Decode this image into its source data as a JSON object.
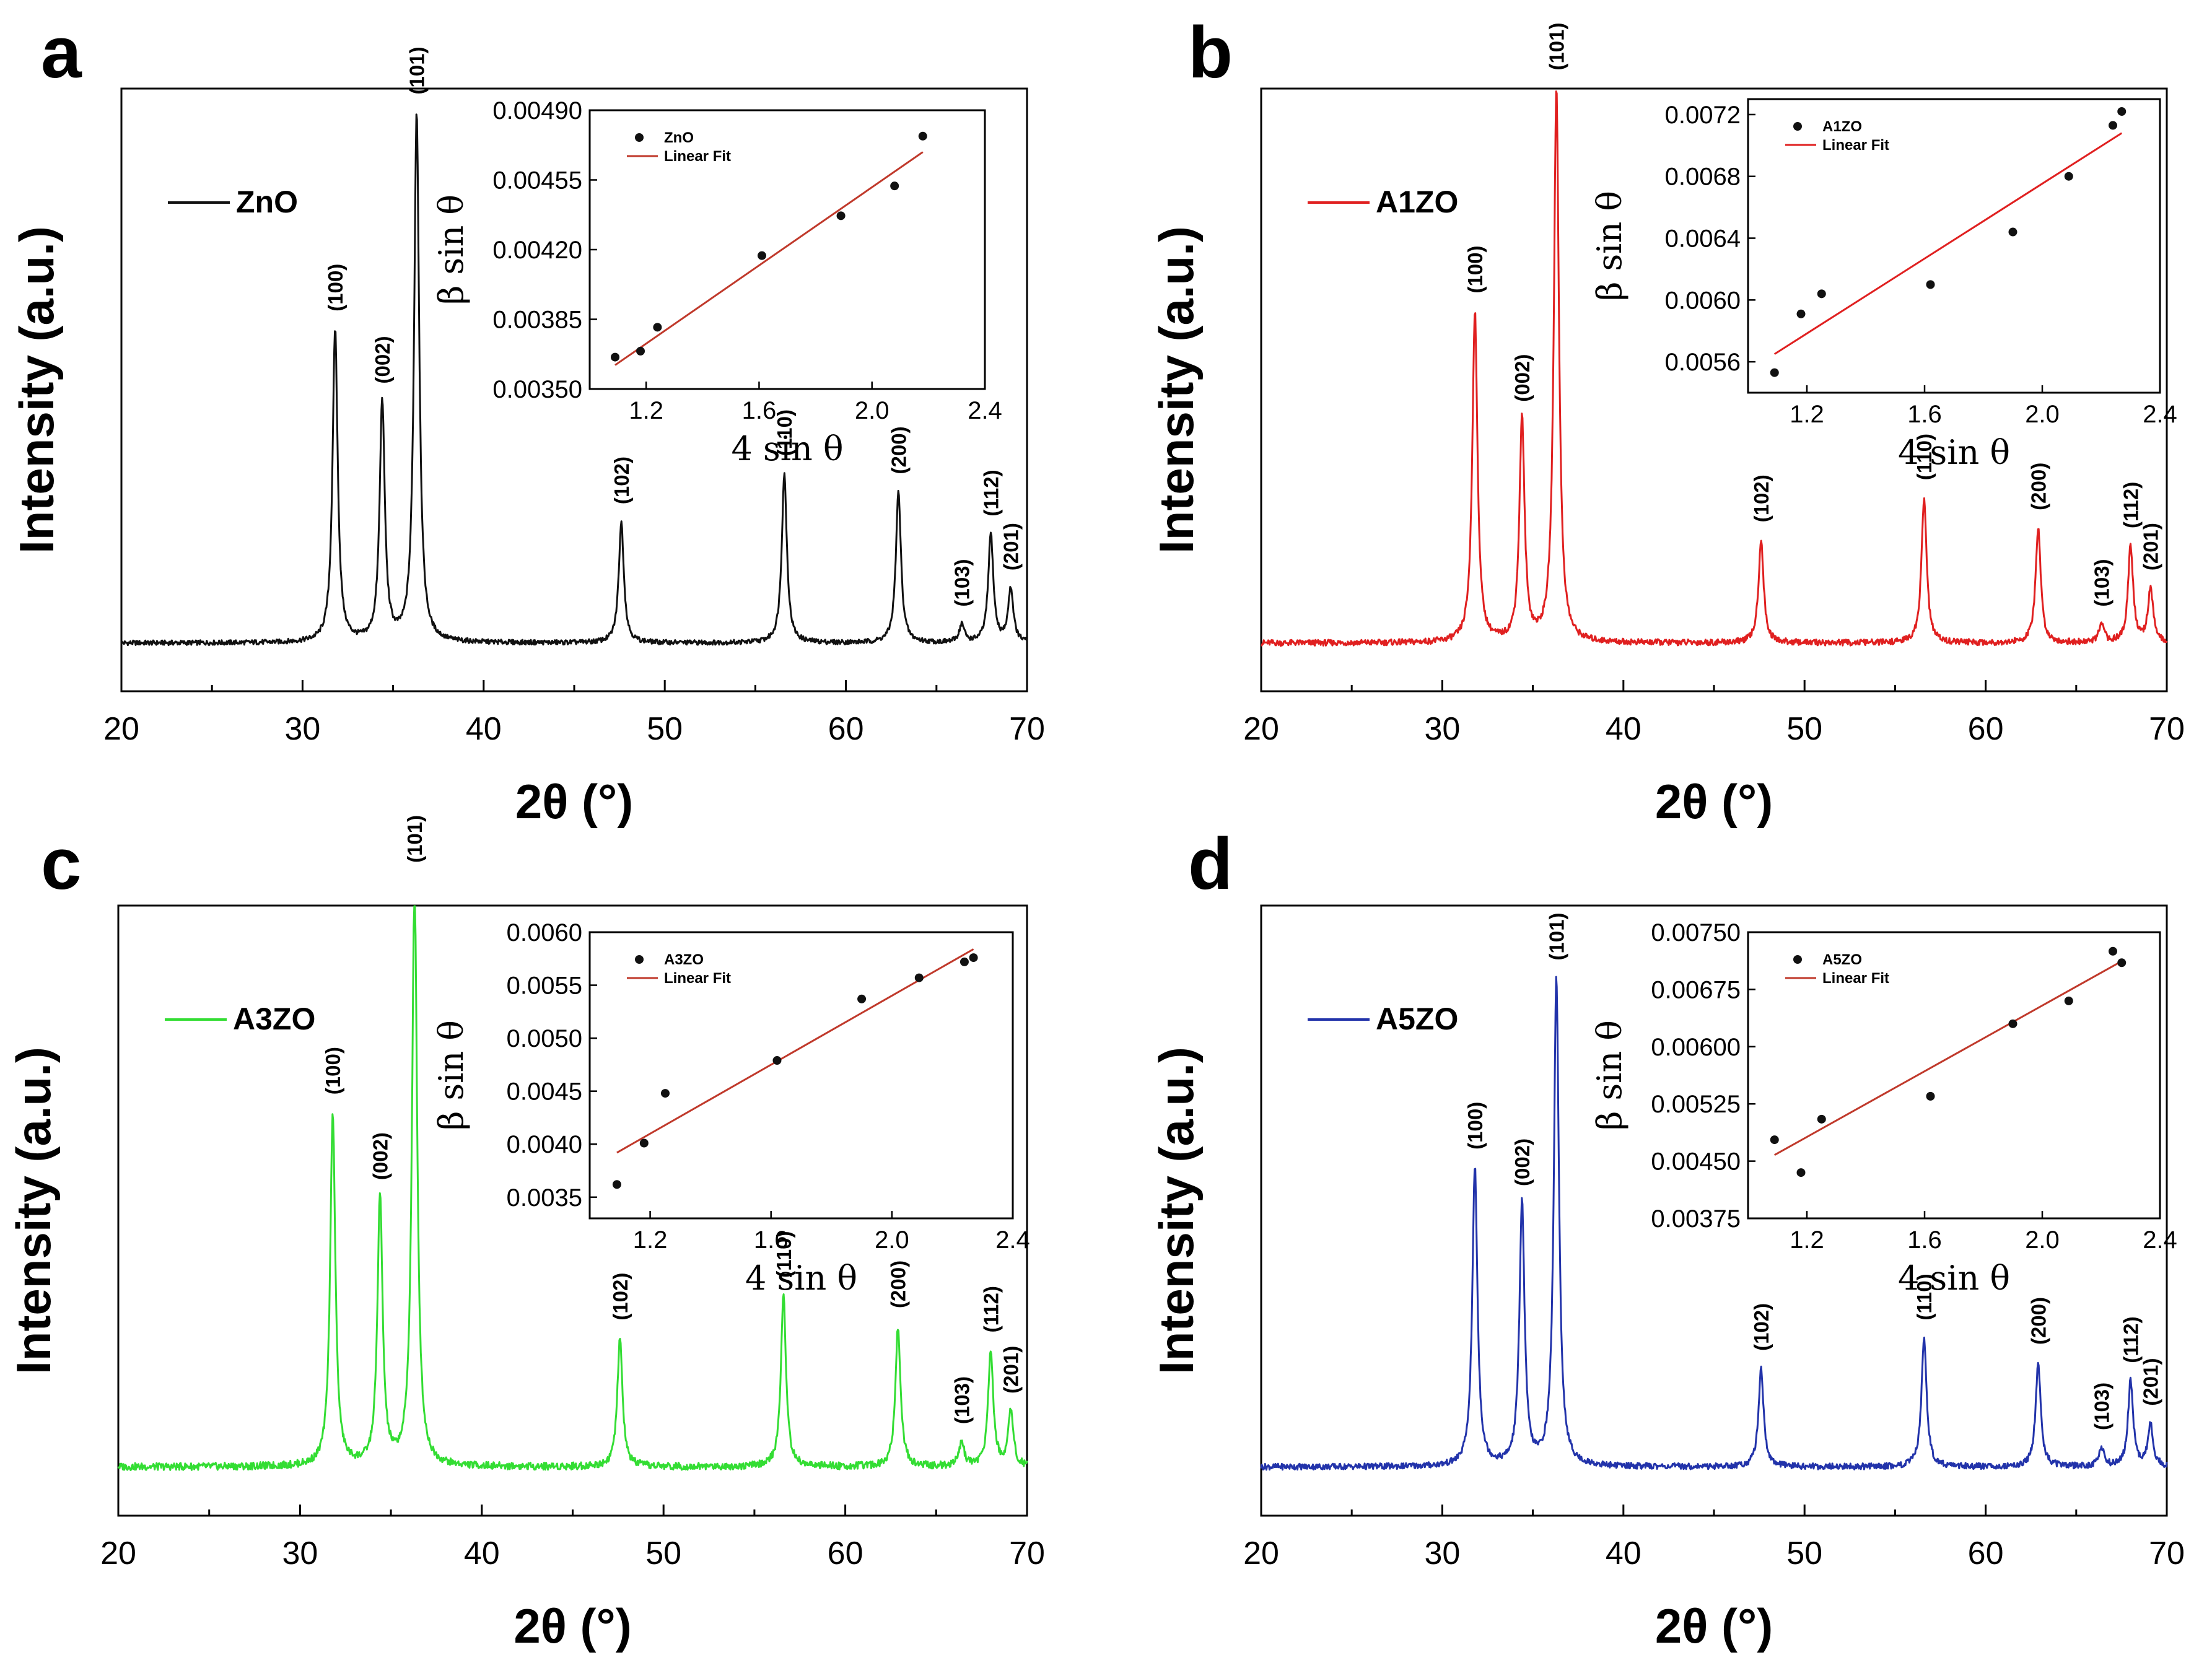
{
  "chart_data": [
    {
      "type": "line",
      "panel_label": "a",
      "title": "",
      "xlabel": "2θ (°)",
      "ylabel": "Intensity (a.u.)",
      "xlim": [
        20,
        70
      ],
      "xticks": [
        "20",
        "30",
        "40",
        "50",
        "60",
        "70"
      ],
      "grid": false,
      "legend": "top-left",
      "color": "#111111",
      "series": [
        {
          "name": "ZnO",
          "baseline": 0.08,
          "noise": 0.004
        }
      ],
      "peaks": [
        {
          "hkl": "(100)",
          "x": 31.8,
          "height": 0.52
        },
        {
          "hkl": "(002)",
          "x": 34.4,
          "height": 0.4
        },
        {
          "hkl": "(101)",
          "x": 36.3,
          "height": 0.88
        },
        {
          "hkl": "(102)",
          "x": 47.6,
          "height": 0.2
        },
        {
          "hkl": "(110)",
          "x": 56.6,
          "height": 0.28
        },
        {
          "hkl": "(200)",
          "x": 62.9,
          "height": 0.25
        },
        {
          "hkl": "(103)",
          "x": 66.4,
          "height": 0.03
        },
        {
          "hkl": "(112)",
          "x": 68.0,
          "height": 0.18
        },
        {
          "hkl": "(201)",
          "x": 69.1,
          "height": 0.09
        }
      ],
      "inset": {
        "type": "scatter",
        "xlabel": "4 sin θ",
        "ylabel": "β sin θ",
        "xlim": [
          1.0,
          2.4
        ],
        "ylim": [
          0.0035,
          0.0049
        ],
        "xticks": [
          "1.2",
          "1.6",
          "2.0",
          "2.4"
        ],
        "yticks": [
          "0.00350",
          "0.00385",
          "0.00420",
          "0.00455",
          "0.00490"
        ],
        "legend": [
          "ZnO",
          "Linear Fit"
        ],
        "point_color": "#111111",
        "fit_color": "#c0392b",
        "points": [
          {
            "x": 1.09,
            "y": 0.00366
          },
          {
            "x": 1.18,
            "y": 0.00369
          },
          {
            "x": 1.24,
            "y": 0.00381
          },
          {
            "x": 1.61,
            "y": 0.00417
          },
          {
            "x": 1.89,
            "y": 0.00437
          },
          {
            "x": 2.08,
            "y": 0.00452
          },
          {
            "x": 2.18,
            "y": 0.00477
          }
        ],
        "fit": {
          "x": [
            1.09,
            2.18
          ],
          "y": [
            0.00362,
            0.00469
          ]
        }
      }
    },
    {
      "type": "line",
      "panel_label": "b",
      "title": "",
      "xlabel": "2θ (°)",
      "ylabel": "Intensity (a.u.)",
      "xlim": [
        20,
        70
      ],
      "xticks": [
        "20",
        "30",
        "40",
        "50",
        "60",
        "70"
      ],
      "grid": false,
      "legend": "top-left",
      "color": "#e02020",
      "series": [
        {
          "name": "A1ZO",
          "baseline": 0.08,
          "noise": 0.005
        }
      ],
      "peaks": [
        {
          "hkl": "(100)",
          "x": 31.8,
          "height": 0.55
        },
        {
          "hkl": "(002)",
          "x": 34.4,
          "height": 0.37
        },
        {
          "hkl": "(101)",
          "x": 36.3,
          "height": 0.92
        },
        {
          "hkl": "(102)",
          "x": 47.6,
          "height": 0.17
        },
        {
          "hkl": "(110)",
          "x": 56.6,
          "height": 0.24
        },
        {
          "hkl": "(200)",
          "x": 62.9,
          "height": 0.19
        },
        {
          "hkl": "(103)",
          "x": 66.4,
          "height": 0.03
        },
        {
          "hkl": "(112)",
          "x": 68.0,
          "height": 0.16
        },
        {
          "hkl": "(201)",
          "x": 69.1,
          "height": 0.09
        }
      ],
      "inset": {
        "type": "scatter",
        "xlabel": "4 sin θ",
        "ylabel": "β sin θ",
        "xlim": [
          1.0,
          2.4
        ],
        "ylim": [
          0.0054,
          0.0073
        ],
        "xticks": [
          "1.2",
          "1.6",
          "2.0",
          "2.4"
        ],
        "yticks": [
          "0.0056",
          "0.0060",
          "0.0064",
          "0.0068",
          "0.0072"
        ],
        "legend": [
          "A1ZO",
          "Linear Fit"
        ],
        "point_color": "#111111",
        "fit_color": "#e02020",
        "points": [
          {
            "x": 1.09,
            "y": 0.00553
          },
          {
            "x": 1.18,
            "y": 0.00591
          },
          {
            "x": 1.25,
            "y": 0.00604
          },
          {
            "x": 1.62,
            "y": 0.0061
          },
          {
            "x": 1.9,
            "y": 0.00644
          },
          {
            "x": 2.09,
            "y": 0.0068
          },
          {
            "x": 2.24,
            "y": 0.00713
          },
          {
            "x": 2.27,
            "y": 0.00722
          }
        ],
        "fit": {
          "x": [
            1.09,
            2.27
          ],
          "y": [
            0.00565,
            0.00708
          ]
        }
      }
    },
    {
      "type": "line",
      "panel_label": "c",
      "title": "",
      "xlabel": "2θ (°)",
      "ylabel": "Intensity (a.u.)",
      "xlim": [
        20,
        70
      ],
      "xticks": [
        "20",
        "30",
        "40",
        "50",
        "60",
        "70"
      ],
      "grid": false,
      "legend": "top-left",
      "color": "#33dd33",
      "series": [
        {
          "name": "A3ZO",
          "baseline": 0.08,
          "noise": 0.006
        }
      ],
      "peaks": [
        {
          "hkl": "(100)",
          "x": 31.8,
          "height": 0.58
        },
        {
          "hkl": "(002)",
          "x": 34.4,
          "height": 0.44
        },
        {
          "hkl": "(101)",
          "x": 36.3,
          "height": 0.96
        },
        {
          "hkl": "(102)",
          "x": 47.6,
          "height": 0.21
        },
        {
          "hkl": "(110)",
          "x": 56.6,
          "height": 0.28
        },
        {
          "hkl": "(200)",
          "x": 62.9,
          "height": 0.23
        },
        {
          "hkl": "(103)",
          "x": 66.4,
          "height": 0.04
        },
        {
          "hkl": "(112)",
          "x": 68.0,
          "height": 0.19
        },
        {
          "hkl": "(201)",
          "x": 69.1,
          "height": 0.09
        }
      ],
      "inset": {
        "type": "scatter",
        "xlabel": "4 sin θ",
        "ylabel": "β sin θ",
        "xlim": [
          1.0,
          2.4
        ],
        "ylim": [
          0.0033,
          0.006
        ],
        "xticks": [
          "1.2",
          "1.6",
          "2.0",
          "2.4"
        ],
        "yticks": [
          "0.0035",
          "0.0040",
          "0.0045",
          "0.0050",
          "0.0055",
          "0.0060"
        ],
        "legend": [
          "A3ZO",
          "Linear Fit"
        ],
        "point_color": "#111111",
        "fit_color": "#c0392b",
        "points": [
          {
            "x": 1.09,
            "y": 0.00362
          },
          {
            "x": 1.18,
            "y": 0.00401
          },
          {
            "x": 1.25,
            "y": 0.00448
          },
          {
            "x": 1.62,
            "y": 0.00479
          },
          {
            "x": 1.9,
            "y": 0.00537
          },
          {
            "x": 2.09,
            "y": 0.00557
          },
          {
            "x": 2.24,
            "y": 0.00572
          },
          {
            "x": 2.27,
            "y": 0.00576
          }
        ],
        "fit": {
          "x": [
            1.09,
            2.27
          ],
          "y": [
            0.00392,
            0.00584
          ]
        }
      }
    },
    {
      "type": "line",
      "panel_label": "d",
      "title": "",
      "xlabel": "2θ (°)",
      "ylabel": "Intensity (a.u.)",
      "xlim": [
        20,
        70
      ],
      "xticks": [
        "20",
        "30",
        "40",
        "50",
        "60",
        "70"
      ],
      "grid": false,
      "legend": "top-left",
      "color": "#2233aa",
      "series": [
        {
          "name": "A5ZO",
          "baseline": 0.08,
          "noise": 0.005
        }
      ],
      "peaks": [
        {
          "hkl": "(100)",
          "x": 31.8,
          "height": 0.49
        },
        {
          "hkl": "(002)",
          "x": 34.4,
          "height": 0.43
        },
        {
          "hkl": "(101)",
          "x": 36.3,
          "height": 0.8
        },
        {
          "hkl": "(102)",
          "x": 47.6,
          "height": 0.16
        },
        {
          "hkl": "(110)",
          "x": 56.6,
          "height": 0.21
        },
        {
          "hkl": "(200)",
          "x": 62.9,
          "height": 0.17
        },
        {
          "hkl": "(103)",
          "x": 66.4,
          "height": 0.03
        },
        {
          "hkl": "(112)",
          "x": 68.0,
          "height": 0.14
        },
        {
          "hkl": "(201)",
          "x": 69.1,
          "height": 0.07
        }
      ],
      "inset": {
        "type": "scatter",
        "xlabel": "4 sin θ",
        "ylabel": "β sin θ",
        "xlim": [
          1.0,
          2.4
        ],
        "ylim": [
          0.00375,
          0.0075
        ],
        "xticks": [
          "1.2",
          "1.6",
          "2.0",
          "2.4"
        ],
        "yticks": [
          "0.00375",
          "0.00450",
          "0.00525",
          "0.00600",
          "0.00675",
          "0.00750"
        ],
        "legend": [
          "A5ZO",
          "Linear Fit"
        ],
        "point_color": "#111111",
        "fit_color": "#c0392b",
        "points": [
          {
            "x": 1.09,
            "y": 0.00478
          },
          {
            "x": 1.18,
            "y": 0.00435
          },
          {
            "x": 1.25,
            "y": 0.00505
          },
          {
            "x": 1.62,
            "y": 0.00535
          },
          {
            "x": 1.9,
            "y": 0.0063
          },
          {
            "x": 2.09,
            "y": 0.0066
          },
          {
            "x": 2.24,
            "y": 0.00725
          },
          {
            "x": 2.27,
            "y": 0.0071
          }
        ],
        "fit": {
          "x": [
            1.09,
            2.27
          ],
          "y": [
            0.00458,
            0.00712
          ]
        }
      }
    }
  ]
}
